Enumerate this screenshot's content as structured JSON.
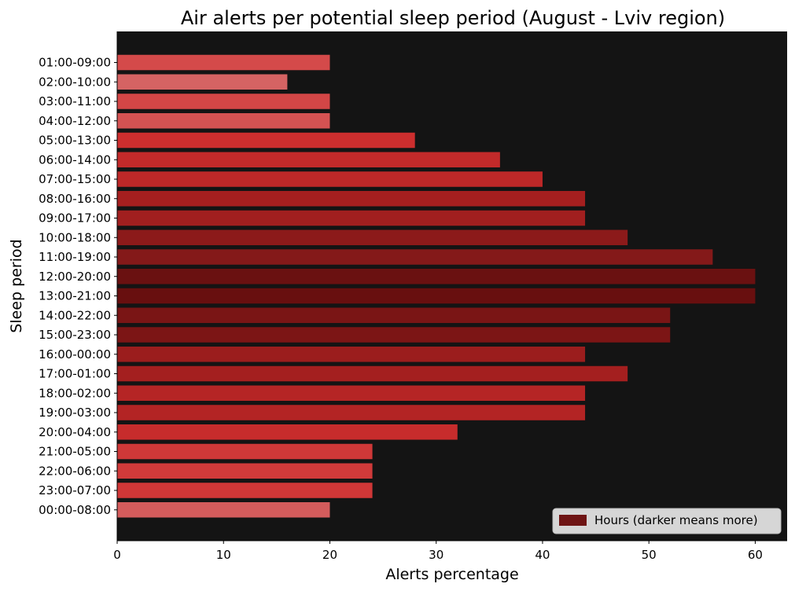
{
  "chart_data": {
    "type": "bar",
    "orientation": "horizontal",
    "title": "Air alerts per potential sleep period (August - Lviv region)",
    "xlabel": "Alerts percentage",
    "ylabel": "Sleep period",
    "xlim": [
      0,
      63
    ],
    "xticks": [
      0,
      10,
      20,
      30,
      40,
      50,
      60
    ],
    "background": "#141414",
    "categories": [
      "01:00-09:00",
      "02:00-10:00",
      "03:00-11:00",
      "04:00-12:00",
      "05:00-13:00",
      "06:00-14:00",
      "07:00-15:00",
      "08:00-16:00",
      "09:00-17:00",
      "10:00-18:00",
      "11:00-19:00",
      "12:00-20:00",
      "13:00-21:00",
      "14:00-22:00",
      "15:00-23:00",
      "16:00-00:00",
      "17:00-01:00",
      "18:00-02:00",
      "19:00-03:00",
      "20:00-04:00",
      "21:00-05:00",
      "22:00-06:00",
      "23:00-07:00",
      "00:00-08:00"
    ],
    "values": [
      20,
      16,
      20,
      20,
      28,
      36,
      40,
      44,
      44,
      48,
      56,
      60,
      60,
      52,
      52,
      44,
      48,
      44,
      44,
      32,
      24,
      24,
      24,
      20
    ],
    "colors": [
      "#d44a4a",
      "#d56363",
      "#d34646",
      "#d45252",
      "#cd2e2e",
      "#c22a2a",
      "#bd2828",
      "#a51f1f",
      "#a11f1f",
      "#8c1a1a",
      "#841919",
      "#6a1111",
      "#680f0f",
      "#7a1515",
      "#7c1515",
      "#9b1d1d",
      "#a41f1f",
      "#b52525",
      "#b32424",
      "#c72c2c",
      "#cf3838",
      "#d03a3a",
      "#d03737",
      "#d45c5c"
    ],
    "legend": {
      "label": "Hours (darker means more)",
      "color": "#6e1414",
      "position": "lower-right"
    },
    "grid": false
  }
}
